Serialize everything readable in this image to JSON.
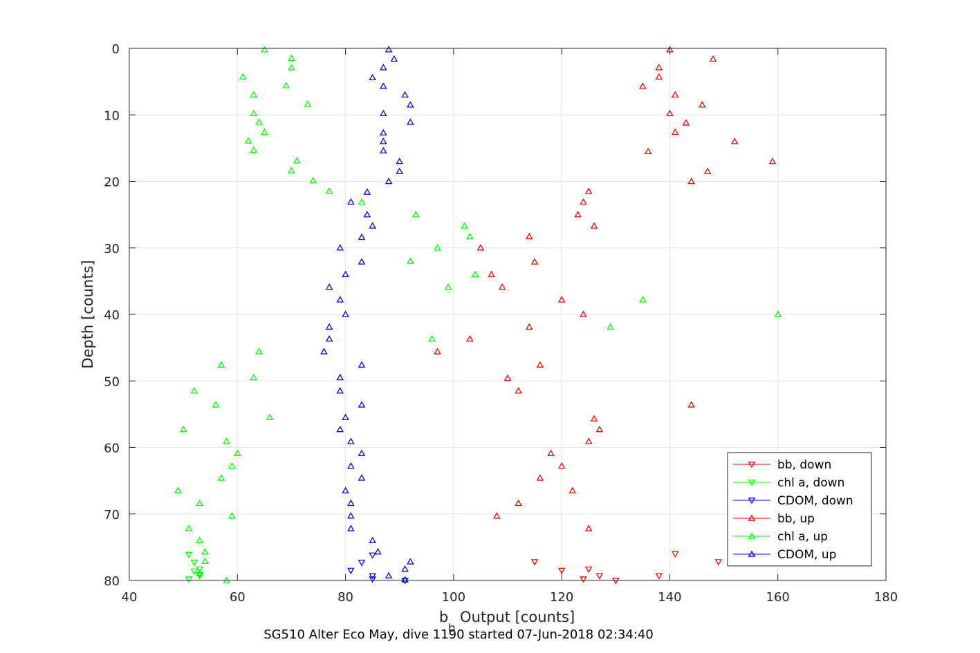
{
  "chart_data": {
    "type": "scatter",
    "xlabel_main": "b",
    "xlabel_sub": "b",
    "xlabel_rest": " Output [counts]",
    "ylabel": "Depth [counts]",
    "caption": "SG510 Alter Eco May, dive 1190 started 07-Jun-2018 02:34:40",
    "xlim": [
      40,
      180
    ],
    "ylim": [
      0,
      80
    ],
    "y_reversed": true,
    "grid": true,
    "legend_position": "bottom-right",
    "x_ticks": [
      "40",
      "60",
      "80",
      "100",
      "120",
      "140",
      "160",
      "180"
    ],
    "y_ticks": [
      "0",
      "10",
      "20",
      "30",
      "40",
      "50",
      "60",
      "70",
      "80"
    ],
    "series": [
      {
        "name": "bb, down",
        "color": "#ff0000",
        "marker": "triangle-down",
        "points": [
          [
            141,
            76.0
          ],
          [
            149,
            77.2
          ],
          [
            115,
            77.2
          ],
          [
            120,
            78.5
          ],
          [
            125,
            78.3
          ],
          [
            127,
            79.3
          ],
          [
            138,
            79.3
          ],
          [
            124,
            79.8
          ],
          [
            130,
            80.0
          ]
        ]
      },
      {
        "name": "chl a, down",
        "color": "#00ff00",
        "marker": "triangle-down",
        "points": [
          [
            51,
            76.1
          ],
          [
            52,
            77.3
          ],
          [
            53,
            78.3
          ],
          [
            52,
            78.6
          ],
          [
            53,
            79.1
          ],
          [
            51,
            79.8
          ],
          [
            53,
            79.3
          ]
        ]
      },
      {
        "name": "CDOM, down",
        "color": "#0000ff",
        "marker": "triangle-down",
        "points": [
          [
            85,
            76.2
          ],
          [
            83,
            77.3
          ],
          [
            81,
            78.5
          ],
          [
            85,
            79.3
          ],
          [
            85,
            79.8
          ],
          [
            91,
            80.0
          ]
        ]
      },
      {
        "name": "bb, up",
        "color": "#ff0000",
        "marker": "triangle-up",
        "points": [
          [
            140,
            0.2
          ],
          [
            148,
            1.6
          ],
          [
            138,
            2.9
          ],
          [
            138,
            4.3
          ],
          [
            135,
            5.7
          ],
          [
            141,
            7.0
          ],
          [
            146,
            8.5
          ],
          [
            140,
            9.8
          ],
          [
            143,
            11.2
          ],
          [
            141,
            12.6
          ],
          [
            152,
            14.0
          ],
          [
            136,
            15.5
          ],
          [
            159,
            17.0
          ],
          [
            147,
            18.5
          ],
          [
            144,
            20.0
          ],
          [
            125,
            21.5
          ],
          [
            124,
            23.1
          ],
          [
            123,
            25.0
          ],
          [
            126,
            26.7
          ],
          [
            114,
            28.3
          ],
          [
            105,
            30.0
          ],
          [
            115,
            32.1
          ],
          [
            107,
            34.0
          ],
          [
            109,
            35.9
          ],
          [
            120,
            37.8
          ],
          [
            124,
            40.0
          ],
          [
            114,
            41.9
          ],
          [
            103,
            43.7
          ],
          [
            97,
            45.6
          ],
          [
            116,
            47.6
          ],
          [
            110,
            49.6
          ],
          [
            112,
            51.5
          ],
          [
            144,
            53.6
          ],
          [
            126,
            55.7
          ],
          [
            127,
            57.3
          ],
          [
            125,
            59.1
          ],
          [
            118,
            60.9
          ],
          [
            120,
            62.8
          ],
          [
            116,
            64.6
          ],
          [
            122,
            66.5
          ],
          [
            112,
            68.4
          ],
          [
            108,
            70.3
          ],
          [
            125,
            72.2
          ]
        ]
      },
      {
        "name": "chl a, up",
        "color": "#00ff00",
        "marker": "triangle-up",
        "points": [
          [
            65,
            0.2
          ],
          [
            70,
            1.5
          ],
          [
            70,
            2.9
          ],
          [
            61,
            4.3
          ],
          [
            69,
            5.6
          ],
          [
            63,
            7.0
          ],
          [
            73,
            8.4
          ],
          [
            63,
            9.8
          ],
          [
            64,
            11.1
          ],
          [
            65,
            12.6
          ],
          [
            62,
            13.9
          ],
          [
            63,
            15.3
          ],
          [
            71,
            16.9
          ],
          [
            70,
            18.4
          ],
          [
            74,
            19.9
          ],
          [
            77,
            21.5
          ],
          [
            83,
            23.1
          ],
          [
            93,
            25.0
          ],
          [
            102,
            26.7
          ],
          [
            103,
            28.3
          ],
          [
            97,
            30.0
          ],
          [
            92,
            32.0
          ],
          [
            104,
            34.0
          ],
          [
            99,
            35.9
          ],
          [
            135,
            37.8
          ],
          [
            160,
            40.0
          ],
          [
            129,
            41.9
          ],
          [
            96,
            43.7
          ],
          [
            64,
            45.6
          ],
          [
            57,
            47.6
          ],
          [
            63,
            49.5
          ],
          [
            52,
            51.5
          ],
          [
            56,
            53.6
          ],
          [
            66,
            55.5
          ],
          [
            50,
            57.3
          ],
          [
            58,
            59.1
          ],
          [
            60,
            60.9
          ],
          [
            59,
            62.8
          ],
          [
            57,
            64.6
          ],
          [
            49,
            66.5
          ],
          [
            53,
            68.4
          ],
          [
            59,
            70.3
          ],
          [
            51,
            72.2
          ],
          [
            53,
            74.0
          ],
          [
            54,
            75.7
          ],
          [
            54,
            77.1
          ],
          [
            53,
            78.9
          ],
          [
            58,
            80.0
          ]
        ]
      },
      {
        "name": "CDOM, up",
        "color": "#0000ff",
        "marker": "triangle-up",
        "points": [
          [
            88,
            0.2
          ],
          [
            89,
            1.6
          ],
          [
            87,
            2.9
          ],
          [
            85,
            4.4
          ],
          [
            87,
            5.7
          ],
          [
            91,
            7.0
          ],
          [
            92,
            8.5
          ],
          [
            87,
            9.8
          ],
          [
            92,
            11.1
          ],
          [
            87,
            12.7
          ],
          [
            87,
            14.0
          ],
          [
            87,
            15.4
          ],
          [
            90,
            17.0
          ],
          [
            90,
            18.5
          ],
          [
            88,
            20.0
          ],
          [
            84,
            21.6
          ],
          [
            81,
            23.1
          ],
          [
            84,
            25.0
          ],
          [
            85,
            26.7
          ],
          [
            83,
            28.4
          ],
          [
            79,
            30.0
          ],
          [
            83,
            32.1
          ],
          [
            80,
            34.0
          ],
          [
            77,
            35.9
          ],
          [
            79,
            37.8
          ],
          [
            80,
            40.0
          ],
          [
            77,
            41.9
          ],
          [
            77,
            43.7
          ],
          [
            76,
            45.6
          ],
          [
            83,
            47.6
          ],
          [
            79,
            49.5
          ],
          [
            79,
            51.5
          ],
          [
            83,
            53.6
          ],
          [
            80,
            55.5
          ],
          [
            79,
            57.3
          ],
          [
            81,
            59.1
          ],
          [
            83,
            60.9
          ],
          [
            81,
            62.8
          ],
          [
            83,
            64.6
          ],
          [
            80,
            66.5
          ],
          [
            81,
            68.4
          ],
          [
            81,
            70.3
          ],
          [
            81,
            72.2
          ],
          [
            85,
            74.0
          ],
          [
            86,
            75.7
          ],
          [
            92,
            77.2
          ],
          [
            91,
            78.3
          ],
          [
            88,
            79.3
          ],
          [
            91,
            79.9
          ]
        ]
      }
    ]
  }
}
